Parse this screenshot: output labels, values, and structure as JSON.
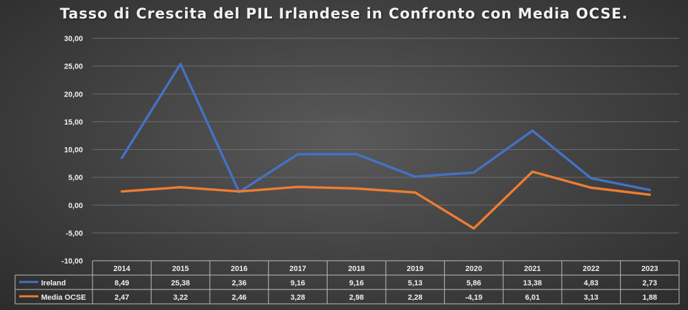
{
  "chart_data": {
    "type": "line",
    "title": "Tasso di Crescita del PIL Irlandese in Confronto con Media OCSE.",
    "categories": [
      "2014",
      "2015",
      "2016",
      "2017",
      "2018",
      "2019",
      "2020",
      "2021",
      "2022",
      "2023"
    ],
    "ylim": [
      -10,
      30
    ],
    "yticks": [
      30,
      25,
      20,
      15,
      10,
      5,
      0,
      -5,
      -10
    ],
    "ytick_labels": [
      "30,00",
      "25,00",
      "20,00",
      "15,00",
      "10,00",
      "5,00",
      "0,00",
      "-5,00",
      "-10,00"
    ],
    "grid": true,
    "legend": "data-table-bottom",
    "series": [
      {
        "name": "Ireland",
        "color": "#4472C4",
        "values": [
          8.49,
          25.38,
          2.36,
          9.16,
          9.16,
          5.13,
          5.86,
          13.38,
          4.83,
          2.73
        ],
        "labels": [
          "8,49",
          "25,38",
          "2,36",
          "9,16",
          "9,16",
          "5,13",
          "5,86",
          "13,38",
          "4,83",
          "2,73"
        ]
      },
      {
        "name": "Media OCSE",
        "color": "#ED7D31",
        "values": [
          2.47,
          3.22,
          2.46,
          3.28,
          2.98,
          2.28,
          -4.19,
          6.01,
          3.13,
          1.88
        ],
        "labels": [
          "2,47",
          "3,22",
          "2,46",
          "3,28",
          "2,98",
          "2,28",
          "-4,19",
          "6,01",
          "3,13",
          "1,88"
        ]
      }
    ]
  }
}
